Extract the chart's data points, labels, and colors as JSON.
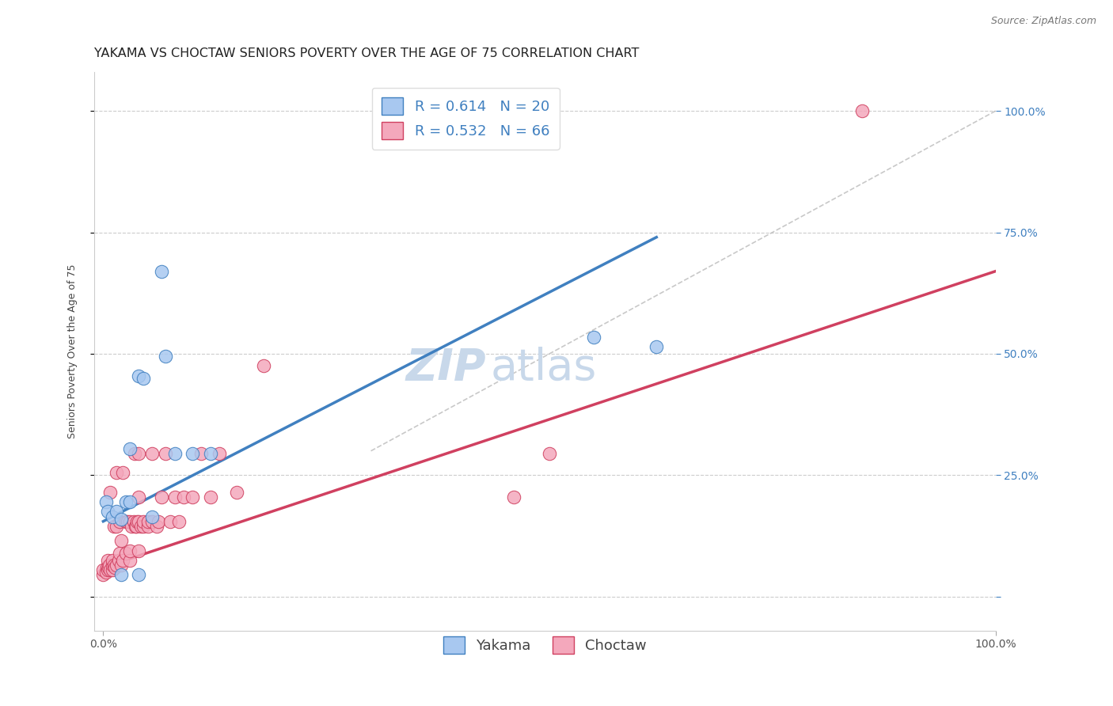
{
  "title": "YAKAMA VS CHOCTAW SENIORS POVERTY OVER THE AGE OF 75 CORRELATION CHART",
  "source": "Source: ZipAtlas.com",
  "ylabel": "Seniors Poverty Over the Age of 75",
  "yakama_R": 0.614,
  "yakama_N": 20,
  "choctaw_R": 0.532,
  "choctaw_N": 66,
  "yakama_color": "#a8c8f0",
  "choctaw_color": "#f4a8bc",
  "yakama_line_color": "#4080c0",
  "choctaw_line_color": "#d04060",
  "diag_color": "#bbbbbb",
  "legend_label1": "Yakama",
  "legend_label2": "Choctaw",
  "watermark_zip": "ZIP",
  "watermark_atlas": "atlas",
  "yakama_points_x": [
    0.003,
    0.005,
    0.01,
    0.015,
    0.02,
    0.02,
    0.025,
    0.03,
    0.03,
    0.04,
    0.04,
    0.045,
    0.055,
    0.065,
    0.07,
    0.08,
    0.1,
    0.12,
    0.55,
    0.62
  ],
  "yakama_points_y": [
    0.195,
    0.175,
    0.165,
    0.175,
    0.16,
    0.045,
    0.195,
    0.195,
    0.305,
    0.455,
    0.045,
    0.45,
    0.165,
    0.67,
    0.495,
    0.295,
    0.295,
    0.295,
    0.535,
    0.515
  ],
  "choctaw_points_x": [
    0.0,
    0.0,
    0.003,
    0.004,
    0.005,
    0.005,
    0.006,
    0.007,
    0.008,
    0.008,
    0.01,
    0.01,
    0.01,
    0.012,
    0.012,
    0.013,
    0.015,
    0.015,
    0.015,
    0.017,
    0.018,
    0.018,
    0.02,
    0.02,
    0.022,
    0.022,
    0.025,
    0.025,
    0.027,
    0.03,
    0.03,
    0.03,
    0.032,
    0.034,
    0.035,
    0.036,
    0.037,
    0.038,
    0.04,
    0.04,
    0.04,
    0.04,
    0.042,
    0.045,
    0.045,
    0.05,
    0.05,
    0.055,
    0.055,
    0.06,
    0.062,
    0.065,
    0.07,
    0.075,
    0.08,
    0.085,
    0.09,
    0.1,
    0.11,
    0.12,
    0.13,
    0.15,
    0.18,
    0.46,
    0.5,
    0.85
  ],
  "choctaw_points_y": [
    0.045,
    0.055,
    0.05,
    0.06,
    0.055,
    0.075,
    0.06,
    0.065,
    0.055,
    0.215,
    0.055,
    0.065,
    0.075,
    0.065,
    0.145,
    0.06,
    0.065,
    0.145,
    0.255,
    0.075,
    0.09,
    0.155,
    0.065,
    0.115,
    0.075,
    0.255,
    0.09,
    0.155,
    0.155,
    0.075,
    0.095,
    0.155,
    0.145,
    0.155,
    0.295,
    0.145,
    0.145,
    0.155,
    0.095,
    0.155,
    0.205,
    0.295,
    0.145,
    0.145,
    0.155,
    0.145,
    0.155,
    0.155,
    0.295,
    0.145,
    0.155,
    0.205,
    0.295,
    0.155,
    0.205,
    0.155,
    0.205,
    0.205,
    0.295,
    0.205,
    0.295,
    0.215,
    0.475,
    0.205,
    0.295,
    1.0
  ],
  "xlim": [
    -0.01,
    1.0
  ],
  "ylim": [
    -0.07,
    1.08
  ],
  "ytick_positions": [
    0.0,
    0.25,
    0.5,
    0.75,
    1.0
  ],
  "ytick_labels_right": [
    "",
    "25.0%",
    "50.0%",
    "75.0%",
    "100.0%"
  ],
  "xtick_positions": [
    0.0,
    1.0
  ],
  "xtick_labels": [
    "0.0%",
    "100.0%"
  ],
  "grid_color": "#cccccc",
  "grid_line_style": "--",
  "background_color": "#ffffff",
  "title_fontsize": 11.5,
  "axis_label_fontsize": 9,
  "tick_label_fontsize": 10,
  "legend_fontsize": 13,
  "watermark_fontsize_zip": 40,
  "watermark_fontsize_atlas": 40,
  "watermark_color": "#c8d8ea",
  "yakama_line_x": [
    0.0,
    0.62
  ],
  "yakama_line_y": [
    0.155,
    0.74
  ],
  "choctaw_line_x": [
    0.0,
    1.0
  ],
  "choctaw_line_y": [
    0.06,
    0.67
  ],
  "diag_line_x": [
    0.3,
    1.0
  ],
  "diag_line_y": [
    0.3,
    1.0
  ],
  "source_fontsize": 9,
  "right_tick_color": "#4080c0",
  "legend_text_color": "#4080c0"
}
